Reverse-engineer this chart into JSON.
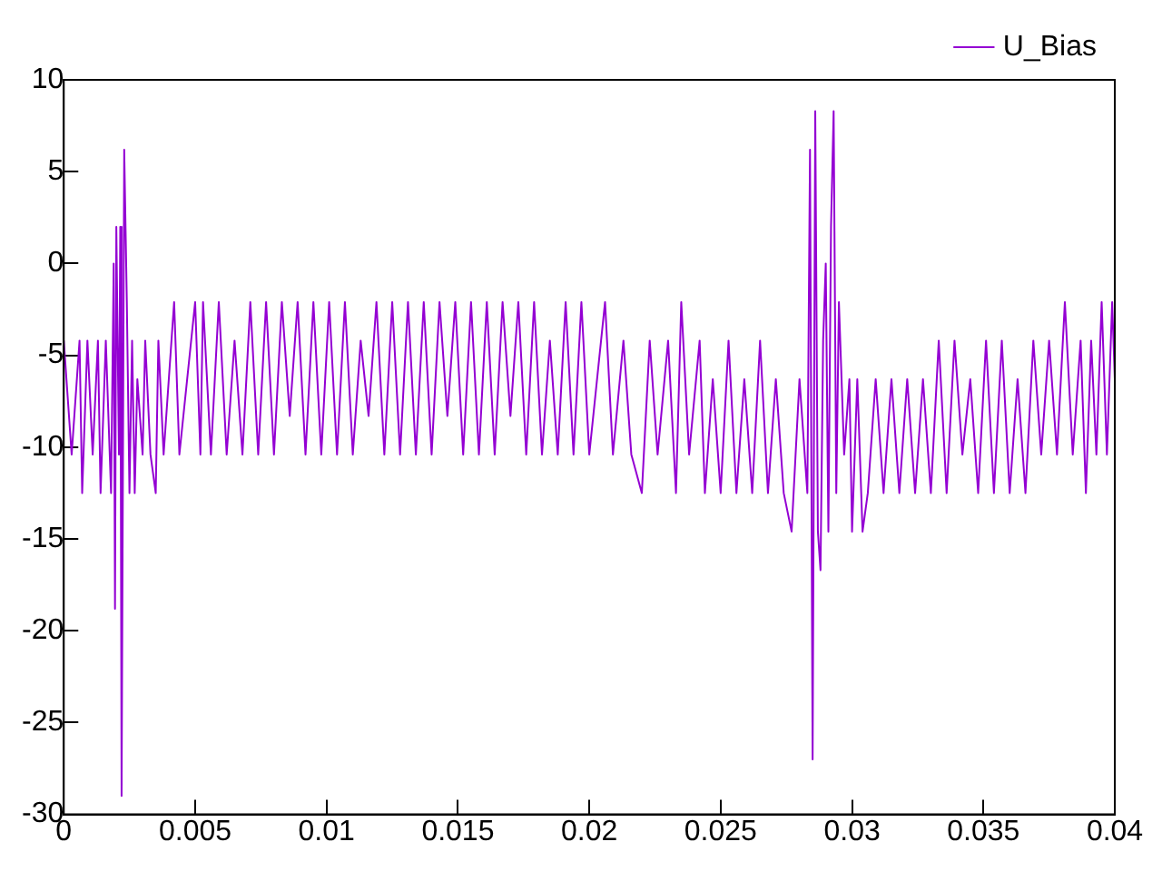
{
  "chart_data": {
    "type": "line",
    "xlim": [
      0,
      0.04
    ],
    "xticks": [
      0,
      0.005,
      0.01,
      0.015,
      0.02,
      0.025,
      0.03,
      0.035,
      0.04
    ],
    "ylim": [
      -30,
      10
    ],
    "yticks": [
      -30,
      -25,
      -20,
      -15,
      -10,
      -5,
      0,
      5,
      10
    ],
    "grid": false,
    "legend": "top right",
    "marker": "none",
    "line_style": "solid",
    "series": [
      {
        "name": "U_Bias",
        "color": "#9400d3",
        "x": [
          0,
          0.0003,
          0.0006,
          0.0007,
          0.0009,
          0.0011,
          0.0013,
          0.0014,
          0.0016,
          0.0018,
          0.0019,
          0.00195,
          0.002,
          0.0021,
          0.00215,
          0.0022,
          0.0023,
          0.0024,
          0.0025,
          0.0026,
          0.0027,
          0.0028,
          0.003,
          0.0031,
          0.0033,
          0.0035,
          0.0036,
          0.0038,
          0.0042,
          0.0044,
          0.005,
          0.0052,
          0.0053,
          0.0056,
          0.0059,
          0.0062,
          0.0065,
          0.0068,
          0.0071,
          0.0074,
          0.0077,
          0.008,
          0.0083,
          0.0086,
          0.0089,
          0.0092,
          0.0095,
          0.0098,
          0.0101,
          0.0104,
          0.0107,
          0.011,
          0.0113,
          0.0116,
          0.0119,
          0.0122,
          0.0125,
          0.0128,
          0.0131,
          0.0134,
          0.0137,
          0.014,
          0.0143,
          0.0146,
          0.0149,
          0.0152,
          0.0155,
          0.0158,
          0.0161,
          0.0164,
          0.0167,
          0.017,
          0.0173,
          0.0176,
          0.0179,
          0.0182,
          0.0185,
          0.0188,
          0.0191,
          0.0194,
          0.0197,
          0.02,
          0.0206,
          0.0209,
          0.0213,
          0.0216,
          0.022,
          0.0223,
          0.0226,
          0.023,
          0.0233,
          0.0235,
          0.0238,
          0.0242,
          0.0244,
          0.0247,
          0.025,
          0.0253,
          0.0256,
          0.0259,
          0.0262,
          0.0265,
          0.0268,
          0.0271,
          0.0274,
          0.0277,
          0.028,
          0.0283,
          0.0284,
          0.0285,
          0.0286,
          0.0287,
          0.0288,
          0.0289,
          0.029,
          0.0291,
          0.0292,
          0.0293,
          0.0294,
          0.0295,
          0.0297,
          0.0299,
          0.03,
          0.0302,
          0.0304,
          0.0306,
          0.0309,
          0.0312,
          0.0315,
          0.0318,
          0.0321,
          0.0324,
          0.0327,
          0.033,
          0.0333,
          0.0336,
          0.0339,
          0.0342,
          0.0345,
          0.0348,
          0.0351,
          0.0354,
          0.0357,
          0.036,
          0.0363,
          0.0366,
          0.0369,
          0.0372,
          0.0375,
          0.0378,
          0.0381,
          0.0384,
          0.0387,
          0.0389,
          0.0391,
          0.0393,
          0.0395,
          0.0397,
          0.0399,
          0.04
        ],
        "values": [
          -4.2,
          -10.4,
          -4.2,
          -12.5,
          -4.2,
          -10.4,
          -4.2,
          -12.5,
          -4.2,
          -12.5,
          0,
          -18.8,
          2,
          -10.4,
          2,
          -29,
          6.2,
          -2.1,
          -12.5,
          -4.2,
          -12.5,
          -6.3,
          -10.4,
          -4.2,
          -10.4,
          -12.5,
          -4.2,
          -10.4,
          -2.1,
          -10.4,
          -2.1,
          -10.4,
          -2.1,
          -10.4,
          -2.1,
          -10.4,
          -4.2,
          -10.4,
          -2.1,
          -10.4,
          -2.1,
          -10.4,
          -2.1,
          -8.3,
          -2.1,
          -10.4,
          -2.1,
          -10.4,
          -2.1,
          -10.4,
          -2.1,
          -10.4,
          -4.2,
          -8.3,
          -2.1,
          -10.4,
          -2.1,
          -10.4,
          -2.1,
          -10.4,
          -2.1,
          -10.4,
          -2.1,
          -8.3,
          -2.1,
          -10.4,
          -2.1,
          -10.4,
          -2.1,
          -10.4,
          -2.1,
          -8.3,
          -2.1,
          -10.4,
          -2.1,
          -10.4,
          -4.2,
          -10.4,
          -2.1,
          -10.4,
          -2.1,
          -10.4,
          -2.1,
          -10.4,
          -4.2,
          -10.4,
          -12.5,
          -4.2,
          -10.4,
          -4.2,
          -12.5,
          -2.1,
          -10.4,
          -4.2,
          -12.5,
          -6.3,
          -12.5,
          -4.2,
          -12.5,
          -6.3,
          -12.5,
          -4.2,
          -12.5,
          -6.3,
          -12.5,
          -14.6,
          -6.3,
          -12.5,
          6.2,
          -27,
          8.3,
          -14.6,
          -16.7,
          -4.2,
          0,
          -14.6,
          2,
          8.3,
          -12.5,
          -2.1,
          -10.4,
          -6.3,
          -14.6,
          -6.3,
          -14.6,
          -12.5,
          -6.3,
          -12.5,
          -6.3,
          -12.5,
          -6.3,
          -12.5,
          -6.3,
          -12.5,
          -4.2,
          -12.5,
          -4.2,
          -10.4,
          -6.3,
          -12.5,
          -4.2,
          -12.5,
          -4.2,
          -12.5,
          -6.3,
          -12.5,
          -4.2,
          -10.4,
          -4.2,
          -10.4,
          -2.1,
          -10.4,
          -4.2,
          -12.5,
          -4.2,
          -10.4,
          -2.1,
          -10.4,
          -2.1,
          -6.3
        ]
      }
    ]
  }
}
